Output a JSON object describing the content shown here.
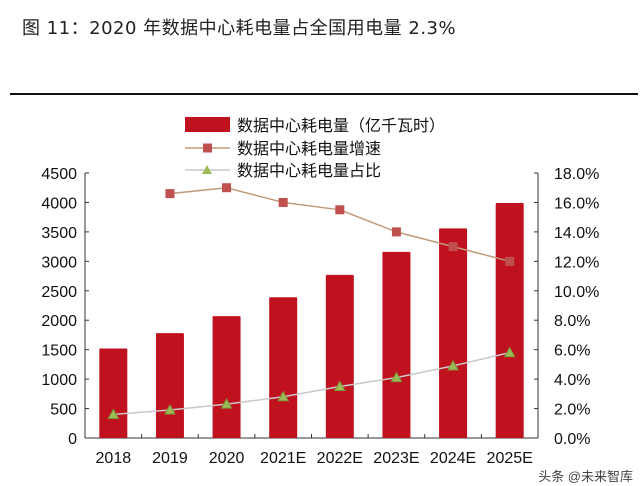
{
  "title": "图 11：2020 年数据中心耗电量占全国用电量 2.3%",
  "watermark": "头条 @未来智库",
  "chart_data": {
    "type": "bar+line",
    "categories": [
      "2018",
      "2019",
      "2020",
      "2021E",
      "2022E",
      "2023E",
      "2024E",
      "2025E"
    ],
    "series": [
      {
        "name": "数据中心耗电量（亿千瓦时）",
        "type": "bar",
        "axis": "left",
        "color": "#c0111f",
        "values": [
          1520,
          1780,
          2070,
          2390,
          2770,
          3160,
          3560,
          3990
        ]
      },
      {
        "name": "数据中心耗电量增速",
        "type": "line",
        "axis": "right",
        "color": "#c0504d",
        "line_color": "#c09a78",
        "marker": "square",
        "values": [
          null,
          16.6,
          17.0,
          16.0,
          15.5,
          14.0,
          13.0,
          12.0
        ]
      },
      {
        "name": "数据中心耗电量占比",
        "type": "line",
        "axis": "right",
        "color": "#9bbb59",
        "line_color": "#c8c8c8",
        "marker": "triangle",
        "values": [
          1.6,
          1.9,
          2.3,
          2.8,
          3.5,
          4.1,
          4.9,
          5.8
        ]
      }
    ],
    "left_axis": {
      "ylim": [
        0,
        4500
      ],
      "ticks": [
        "0",
        "500",
        "1000",
        "1500",
        "2000",
        "2500",
        "3000",
        "3500",
        "4000",
        "4500"
      ]
    },
    "right_axis": {
      "ylim": [
        0,
        18
      ],
      "ticks": [
        "0.0%",
        "2.0%",
        "4.0%",
        "6.0%",
        "8.0%",
        "10.0%",
        "12.0%",
        "14.0%",
        "16.0%",
        "18.0%"
      ]
    },
    "legend": "top"
  }
}
